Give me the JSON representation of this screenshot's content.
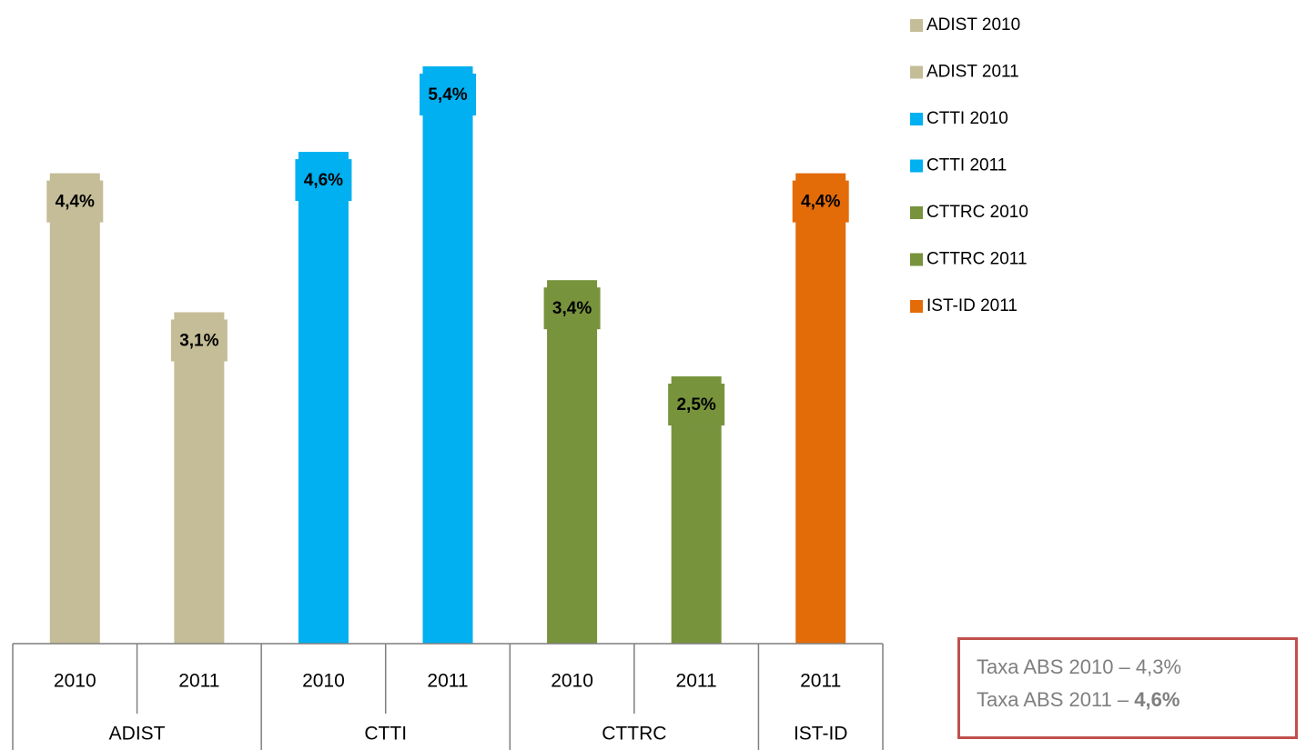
{
  "chart_data": {
    "type": "bar",
    "groups": [
      {
        "name": "ADIST",
        "categories": [
          "2010",
          "2011"
        ]
      },
      {
        "name": "CTTI",
        "categories": [
          "2010",
          "2011"
        ]
      },
      {
        "name": "CTTRC",
        "categories": [
          "2010",
          "2011"
        ]
      },
      {
        "name": "IST-ID",
        "categories": [
          "2011"
        ]
      }
    ],
    "series": [
      {
        "name": "ADIST 2010",
        "color": "#c4bd97",
        "values": [
          4.4
        ],
        "value_labels": [
          "4,4%"
        ]
      },
      {
        "name": "ADIST 2011",
        "color": "#c4bd97",
        "values": [
          3.1
        ],
        "value_labels": [
          "3,1%"
        ]
      },
      {
        "name": "CTTI 2010",
        "color": "#00b0f0",
        "values": [
          4.6
        ],
        "value_labels": [
          "4,6%"
        ]
      },
      {
        "name": "CTTI 2011",
        "color": "#00b0f0",
        "values": [
          5.4
        ],
        "value_labels": [
          "5,4%"
        ]
      },
      {
        "name": "CTTRC 2010",
        "color": "#77933c",
        "values": [
          3.4
        ],
        "value_labels": [
          "3,4%"
        ]
      },
      {
        "name": "CTTRC 2011",
        "color": "#77933c",
        "values": [
          2.5
        ],
        "value_labels": [
          "2,5%"
        ]
      },
      {
        "name": "IST-ID 2011",
        "color": "#e36c09",
        "values": [
          4.4
        ],
        "value_labels": [
          "4,4%"
        ]
      }
    ],
    "legend": "right",
    "annotation": {
      "lines": [
        {
          "text": "Taxa ABS 2010 – ",
          "value": "4,3%",
          "bold": false
        },
        {
          "text": "Taxa ABS 2011 – ",
          "value": "4,6%",
          "bold": true
        }
      ]
    }
  }
}
